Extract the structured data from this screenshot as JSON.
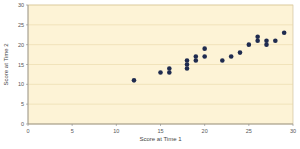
{
  "chart_data": {
    "type": "scatter",
    "x_label": "Score at Time 1",
    "y_label": "Score at Time 2",
    "x": [
      12,
      15,
      16,
      16,
      18,
      18,
      18,
      19,
      19,
      20,
      20,
      22,
      23,
      24,
      25,
      26,
      26,
      27,
      27,
      28,
      29
    ],
    "values": [
      11,
      13,
      13,
      14,
      14,
      15,
      16,
      16,
      17,
      17,
      19,
      16,
      17,
      18,
      20,
      21,
      22,
      20,
      21,
      21,
      23
    ],
    "color": "#1f2b4f",
    "xlim": [
      0,
      30
    ],
    "xticks": [
      0,
      5,
      10,
      15,
      20,
      25,
      30
    ],
    "ylim": [
      0,
      30
    ],
    "yticks": [
      0,
      5,
      10,
      15,
      20,
      25,
      30
    ],
    "grid": true
  }
}
